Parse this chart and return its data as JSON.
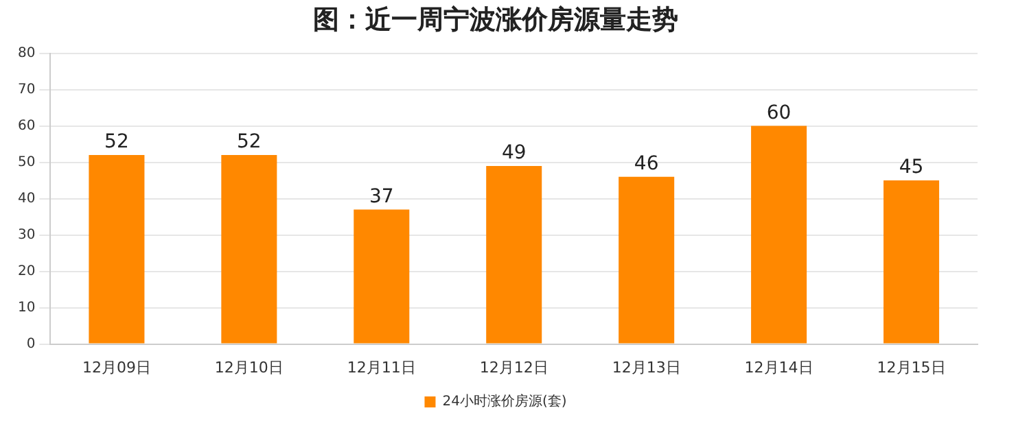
{
  "chart_data": {
    "type": "bar",
    "title": "图：近一周宁波涨价房源量走势",
    "categories": [
      "12月09日",
      "12月10日",
      "12月11日",
      "12月12日",
      "12月13日",
      "12月14日",
      "12月15日"
    ],
    "series": [
      {
        "name": "24小时涨价房源(套)",
        "color": "#ff8800",
        "values": [
          52,
          52,
          37,
          49,
          46,
          60,
          45
        ]
      }
    ],
    "ylim": [
      0,
      80
    ],
    "yticks": [
      0,
      10,
      20,
      30,
      40,
      50,
      60,
      70,
      80
    ],
    "grid": "y",
    "legend": "bottom",
    "data_labels": true
  }
}
